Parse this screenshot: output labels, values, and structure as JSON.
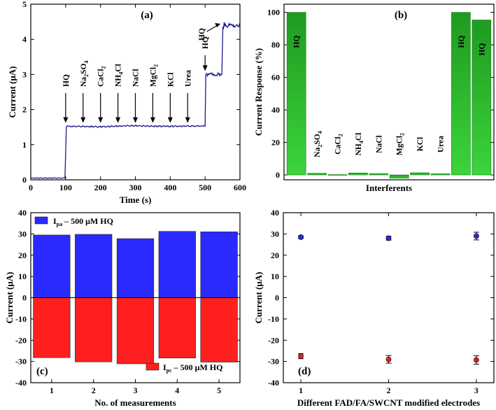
{
  "chart_data": [
    {
      "panel": "(a)",
      "type": "line",
      "xlabel": "Time (s)",
      "ylabel": "Current (μA)",
      "xlim": [
        0,
        600
      ],
      "ylim": [
        0,
        5
      ],
      "xticks": [
        "0",
        "100",
        "200",
        "300",
        "400",
        "500",
        "600"
      ],
      "yticks": [
        "0",
        "1",
        "2",
        "3",
        "4",
        "5"
      ],
      "color": "#1a1a8c",
      "x": [
        0,
        98,
        102,
        150,
        200,
        250,
        300,
        350,
        400,
        450,
        495,
        500,
        502,
        510,
        520,
        530,
        540,
        545,
        548,
        551,
        555,
        560,
        570,
        580,
        590,
        600
      ],
      "y": [
        0.05,
        0.05,
        1.52,
        1.52,
        1.51,
        1.53,
        1.54,
        1.53,
        1.52,
        1.53,
        1.53,
        1.53,
        3.0,
        2.98,
        3.02,
        2.99,
        3.01,
        3.0,
        3.0,
        4.3,
        4.45,
        4.38,
        4.4,
        4.35,
        4.42,
        4.4
      ],
      "annotations": [
        {
          "base": "HQ",
          "sub": "",
          "rest": "",
          "x": 100
        },
        {
          "base": "Na",
          "sub": "2",
          "rest": "SO4",
          "x": 150
        },
        {
          "base": "CaCl",
          "sub": "2",
          "rest": "",
          "x": 200
        },
        {
          "base": "NH",
          "sub": "4",
          "rest": "Cl",
          "x": 250
        },
        {
          "base": "NaCl",
          "sub": "",
          "rest": "",
          "x": 300
        },
        {
          "base": "MgCl",
          "sub": "2",
          "rest": "",
          "x": 350
        },
        {
          "base": "KCl",
          "sub": "",
          "rest": "",
          "x": 400
        },
        {
          "base": "Urea",
          "sub": "",
          "rest": "",
          "x": 450
        },
        {
          "base": "HQ",
          "sub": "",
          "rest": "",
          "x": 500
        },
        {
          "base": "HQ",
          "sub": "",
          "rest": "",
          "x": 550
        }
      ]
    },
    {
      "panel": "(b)",
      "type": "bar",
      "xlabel": "Interferents",
      "ylabel": "Current Response (%)",
      "ylim": [
        -3,
        105
      ],
      "yticks": [
        "0",
        "20",
        "40",
        "60",
        "80",
        "100"
      ],
      "categories": [
        "HQ",
        "Na2SO4",
        "CaCl2",
        "NH4Cl",
        "NaCl",
        "MgCl2",
        "KCl",
        "Urea",
        "HQ",
        "HQ"
      ],
      "values": [
        100,
        1.0,
        0.2,
        1.2,
        0.8,
        -2.0,
        1.3,
        0.7,
        100,
        95.3
      ],
      "colors": [
        "#3cd43c",
        "#1f9a1f"
      ]
    },
    {
      "panel": "(c)",
      "type": "bar",
      "xlabel": "No. of measurements",
      "ylabel": "Current (μA)",
      "ylim": [
        -40,
        40
      ],
      "yticks": [
        "-40",
        "-30",
        "-20",
        "-10",
        "0",
        "10",
        "20",
        "30",
        "40"
      ],
      "categories": [
        "1",
        "2",
        "3",
        "4",
        "5"
      ],
      "series": [
        {
          "name": "Ipa",
          "legend": "I",
          "legend_sub": "pa",
          "legend_rest": " – 500 μM HQ",
          "color": "#2a2aff",
          "values": [
            29.5,
            29.8,
            27.8,
            31.2,
            31.0
          ]
        },
        {
          "name": "Ipc",
          "legend": "I",
          "legend_sub": "pc",
          "legend_rest": " – 500 μM HQ",
          "color": "#ff1f1f",
          "values": [
            -28.2,
            -30.2,
            -31.1,
            -28.4,
            -30.3
          ]
        }
      ]
    },
    {
      "panel": "(d)",
      "type": "scatter",
      "xlabel": "Different FAD/FA/SWCNT modified electrodes",
      "ylabel": "Current (μA)",
      "xlim": [
        0.8,
        3.2
      ],
      "ylim": [
        -40,
        40
      ],
      "xticks": [
        "1",
        "2",
        "3"
      ],
      "yticks": [
        "-40",
        "-30",
        "-20",
        "-10",
        "0",
        "10",
        "20",
        "30",
        "40"
      ],
      "series": [
        {
          "name": "Ipa",
          "color": "#2a2ad8",
          "x": [
            1,
            2,
            3
          ],
          "y": [
            28.5,
            28.0,
            29.0
          ],
          "err": [
            0.6,
            0.9,
            1.8
          ]
        },
        {
          "name": "Ipc",
          "color": "#e02020",
          "x": [
            1,
            2,
            3
          ],
          "y": [
            -27.5,
            -29.0,
            -29.3
          ],
          "err": [
            1.2,
            1.8,
            2.0
          ]
        }
      ]
    }
  ]
}
